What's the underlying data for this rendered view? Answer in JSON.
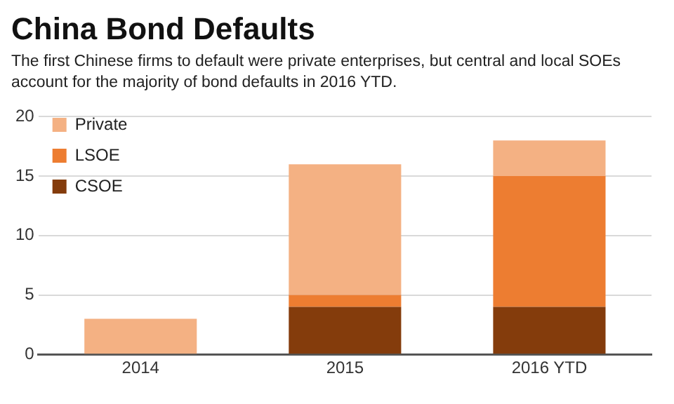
{
  "chart_data": {
    "type": "bar",
    "title": "China Bond Defaults",
    "subtitle": "The first Chinese firms to default were private enterprises, but central and local SOEs account for the majority of bond defaults in 2016 YTD.",
    "categories": [
      "2014",
      "2015",
      "2016 YTD"
    ],
    "stacked": true,
    "series": [
      {
        "name": "CSOE",
        "color": "#843c0c",
        "values": [
          0,
          4,
          4
        ]
      },
      {
        "name": "LSOE",
        "color": "#ed7d31",
        "values": [
          0,
          1,
          11
        ]
      },
      {
        "name": "Private",
        "color": "#f4b183",
        "values": [
          3,
          11,
          3
        ]
      }
    ],
    "ylim": [
      0,
      20
    ],
    "yticks": [
      0,
      5,
      10,
      15,
      20
    ],
    "grid": "y",
    "legend": "top left"
  }
}
